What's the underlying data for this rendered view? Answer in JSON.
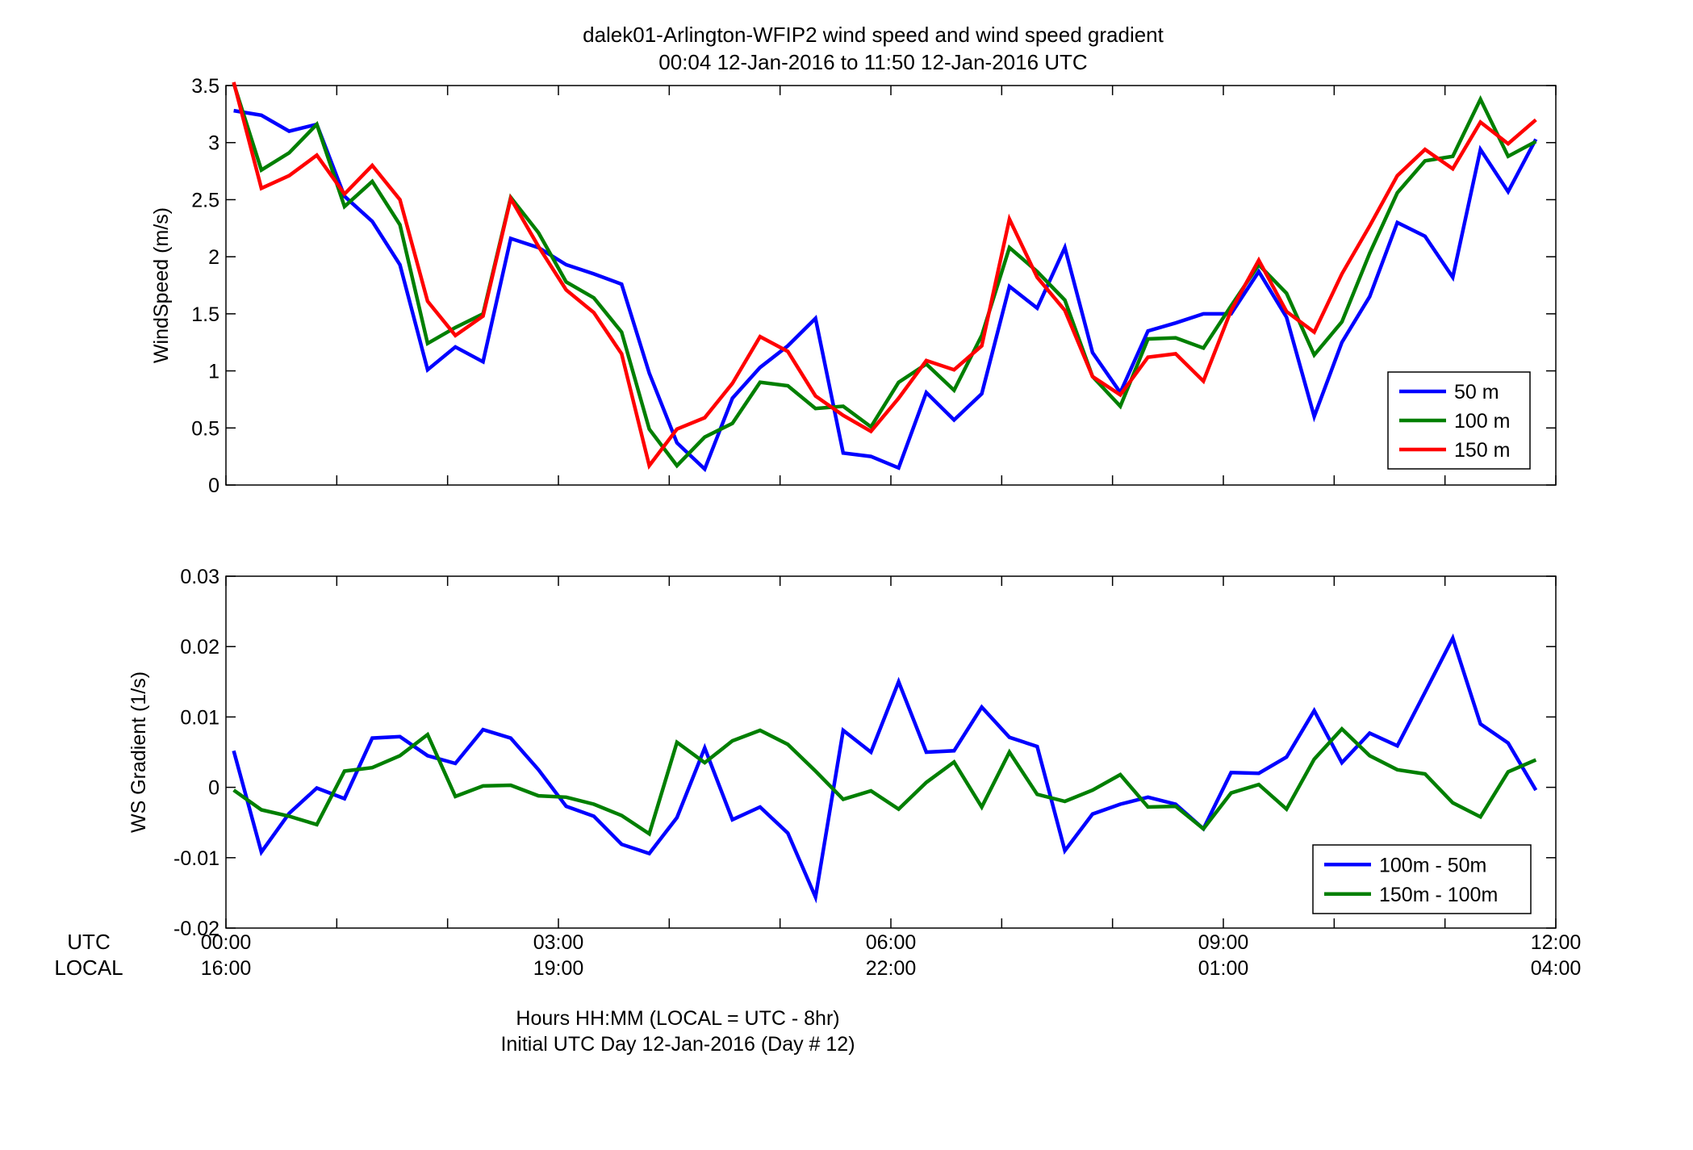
{
  "title": {
    "line1": "dalek01-Arlington-WFIP2  wind speed and wind speed gradient",
    "line2": "00:04 12-Jan-2016 to 11:50 12-Jan-2016  UTC"
  },
  "xaxis": {
    "row_label_utc": "UTC",
    "row_label_local": "LOCAL",
    "utc_ticks": [
      "00:00",
      "03:00",
      "06:00",
      "09:00",
      "12:00"
    ],
    "local_ticks": [
      "16:00",
      "19:00",
      "22:00",
      "01:00",
      "04:00"
    ],
    "label_line1": "Hours HH:MM  (LOCAL = UTC - 8hr)",
    "label_line2": "Initial UTC Day 12-Jan-2016 (Day # 12)"
  },
  "colors": {
    "blue": "#0000ff",
    "green": "#007f00",
    "red": "#ff0000"
  },
  "chart_data": [
    {
      "type": "line",
      "ylabel": "WindSpeed (m/s)",
      "xlim": [
        0,
        12
      ],
      "ylim": [
        0,
        3.5
      ],
      "yticks": [
        0,
        0.5,
        1,
        1.5,
        2,
        2.5,
        3,
        3.5
      ],
      "ytick_labels": [
        "0",
        "0.5",
        "1",
        "1.5",
        "2",
        "2.5",
        "3",
        "3.5"
      ],
      "xticks": [
        0,
        3,
        6,
        9,
        12
      ],
      "legend_position": "lower-right",
      "x_hours": [
        0.07,
        0.32,
        0.57,
        0.82,
        1.07,
        1.32,
        1.57,
        1.82,
        2.07,
        2.32,
        2.57,
        2.82,
        3.07,
        3.32,
        3.57,
        3.82,
        4.07,
        4.32,
        4.57,
        4.82,
        5.07,
        5.32,
        5.57,
        5.82,
        6.07,
        6.32,
        6.57,
        6.82,
        7.07,
        7.32,
        7.57,
        7.82,
        8.07,
        8.32,
        8.57,
        8.82,
        9.07,
        9.32,
        9.57,
        9.82,
        10.07,
        10.32,
        10.57,
        10.82,
        11.07,
        11.32,
        11.57,
        11.82
      ],
      "series": [
        {
          "name": "50 m",
          "color": "#0000ff",
          "values": [
            3.28,
            3.24,
            3.1,
            3.16,
            2.53,
            2.31,
            1.93,
            1.01,
            1.21,
            1.08,
            2.16,
            2.08,
            1.93,
            1.85,
            1.76,
            0.98,
            0.37,
            0.14,
            0.76,
            1.03,
            1.22,
            1.46,
            0.28,
            0.25,
            0.15,
            0.81,
            0.57,
            0.8,
            1.74,
            1.55,
            2.08,
            1.16,
            0.81,
            1.35,
            1.42,
            1.5,
            1.5,
            1.87,
            1.47,
            0.6,
            1.25,
            1.65,
            2.3,
            2.18,
            1.82,
            2.94,
            2.57,
            3.03
          ]
        },
        {
          "name": "100 m",
          "color": "#007f00",
          "values": [
            3.52,
            2.76,
            2.91,
            3.16,
            2.44,
            2.66,
            2.28,
            1.24,
            1.38,
            1.5,
            2.52,
            2.21,
            1.78,
            1.64,
            1.34,
            0.49,
            0.17,
            0.42,
            0.54,
            0.9,
            0.87,
            0.67,
            0.69,
            0.51,
            0.9,
            1.06,
            0.83,
            1.31,
            2.08,
            1.87,
            1.62,
            0.95,
            0.69,
            1.28,
            1.29,
            1.2,
            1.57,
            1.93,
            1.68,
            1.14,
            1.43,
            2.03,
            2.56,
            2.84,
            2.88,
            3.38,
            2.88,
            3.01
          ]
        },
        {
          "name": "150 m",
          "color": "#ff0000",
          "values": [
            3.53,
            2.6,
            2.71,
            2.89,
            2.55,
            2.8,
            2.5,
            1.61,
            1.31,
            1.48,
            2.51,
            2.09,
            1.71,
            1.51,
            1.15,
            0.17,
            0.49,
            0.59,
            0.89,
            1.3,
            1.17,
            0.78,
            0.61,
            0.47,
            0.76,
            1.09,
            1.01,
            1.22,
            2.33,
            1.82,
            1.53,
            0.95,
            0.79,
            1.12,
            1.15,
            0.91,
            1.53,
            1.97,
            1.52,
            1.34,
            1.85,
            2.27,
            2.71,
            2.94,
            2.77,
            3.18,
            2.99,
            3.2
          ]
        }
      ]
    },
    {
      "type": "line",
      "ylabel": "WS Gradient (1/s)",
      "xlim": [
        0,
        12
      ],
      "ylim": [
        -0.02,
        0.03
      ],
      "yticks": [
        -0.02,
        -0.01,
        0,
        0.01,
        0.02,
        0.03
      ],
      "ytick_labels": [
        "-0.02",
        "-0.01",
        "0",
        "0.01",
        "0.02",
        "0.03"
      ],
      "xticks": [
        0,
        3,
        6,
        9,
        12
      ],
      "legend_position": "lower-right",
      "x_hours": [
        0.07,
        0.32,
        0.57,
        0.82,
        1.07,
        1.32,
        1.57,
        1.82,
        2.07,
        2.32,
        2.57,
        2.82,
        3.07,
        3.32,
        3.57,
        3.82,
        4.07,
        4.32,
        4.57,
        4.82,
        5.07,
        5.32,
        5.57,
        5.82,
        6.07,
        6.32,
        6.57,
        6.82,
        7.07,
        7.32,
        7.57,
        7.82,
        8.07,
        8.32,
        8.57,
        8.82,
        9.07,
        9.32,
        9.57,
        9.82,
        10.07,
        10.32,
        10.57,
        10.82,
        11.07,
        11.32,
        11.57,
        11.82
      ],
      "series": [
        {
          "name": "100m - 50m",
          "color": "#0000ff",
          "values": [
            0.0052,
            -0.0092,
            -0.0037,
            -0.0001,
            -0.0016,
            0.007,
            0.0072,
            0.0045,
            0.0034,
            0.0082,
            0.007,
            0.0025,
            -0.0027,
            -0.0041,
            -0.0081,
            -0.0094,
            -0.0043,
            0.0056,
            -0.0046,
            -0.0028,
            -0.0065,
            -0.0156,
            0.0081,
            0.005,
            0.015,
            0.005,
            0.0052,
            0.0114,
            0.0071,
            0.0058,
            -0.009,
            -0.0038,
            -0.0024,
            -0.0014,
            -0.0024,
            -0.0059,
            0.0021,
            0.002,
            0.0043,
            0.0109,
            0.0035,
            0.0077,
            0.0059,
            0.0135,
            0.0212,
            0.009,
            0.0063,
            -0.0004
          ]
        },
        {
          "name": "150m - 100m",
          "color": "#007f00",
          "values": [
            -0.0004,
            -0.0032,
            -0.0041,
            -0.0053,
            0.0023,
            0.0028,
            0.0045,
            0.0075,
            -0.0013,
            0.0002,
            0.0003,
            -0.0012,
            -0.0014,
            -0.0024,
            -0.004,
            -0.0066,
            0.0064,
            0.0035,
            0.0066,
            0.0081,
            0.0061,
            0.0023,
            -0.0017,
            -0.0005,
            -0.0031,
            0.0007,
            0.0036,
            -0.0028,
            0.005,
            -0.001,
            -0.002,
            -0.0004,
            0.0018,
            -0.0028,
            -0.0027,
            -0.0059,
            -0.0008,
            0.0004,
            -0.0031,
            0.004,
            0.0083,
            0.0045,
            0.0025,
            0.0019,
            -0.0022,
            -0.0042,
            0.0022,
            0.0039
          ]
        }
      ]
    }
  ]
}
